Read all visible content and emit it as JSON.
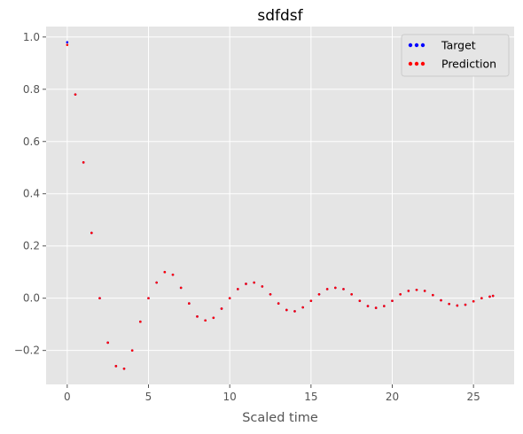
{
  "chart_data": {
    "type": "scatter",
    "title": "sdfdsf",
    "xlabel": "Scaled time",
    "ylabel": "",
    "xlim": [
      -1.3,
      27.5
    ],
    "ylim": [
      -0.33,
      1.04
    ],
    "x_ticks": [
      0,
      5,
      10,
      15,
      20,
      25
    ],
    "x_tick_labels": [
      "0",
      "5",
      "10",
      "15",
      "20",
      "25"
    ],
    "y_ticks": [
      -0.2,
      0.0,
      0.2,
      0.4,
      0.6,
      0.8,
      1.0
    ],
    "y_tick_labels": [
      "−0.2",
      "0.0",
      "0.2",
      "0.4",
      "0.6",
      "0.8",
      "1.0"
    ],
    "grid": true,
    "legend_position": "top-right",
    "series": [
      {
        "name": "Target",
        "color": "#0000ff",
        "x": [
          0.0,
          0.5,
          1.0,
          1.5,
          2.0,
          2.5,
          3.0,
          3.5,
          4.0,
          4.5,
          5.0,
          5.5,
          6.0,
          6.5,
          7.0,
          7.5,
          8.0,
          8.5,
          9.0,
          9.5,
          10.0,
          10.5,
          11.0,
          11.5,
          12.0,
          12.5,
          13.0,
          13.5,
          14.0,
          14.5,
          15.0,
          15.5,
          16.0,
          16.5,
          17.0,
          17.5,
          18.0,
          18.5,
          19.0,
          19.5,
          20.0,
          20.5,
          21.0,
          21.5,
          22.0,
          22.5,
          23.0,
          23.5,
          24.0,
          24.5,
          25.0,
          25.5,
          26.0,
          26.2
        ],
        "y": [
          0.98,
          0.78,
          0.52,
          0.25,
          0.0,
          -0.17,
          -0.26,
          -0.27,
          -0.2,
          -0.09,
          0.0,
          0.06,
          0.1,
          0.09,
          0.04,
          -0.02,
          -0.07,
          -0.085,
          -0.075,
          -0.04,
          0.0,
          0.035,
          0.055,
          0.06,
          0.045,
          0.015,
          -0.02,
          -0.045,
          -0.05,
          -0.035,
          -0.01,
          0.015,
          0.035,
          0.04,
          0.035,
          0.015,
          -0.01,
          -0.03,
          -0.037,
          -0.03,
          -0.01,
          0.015,
          0.028,
          0.032,
          0.028,
          0.012,
          -0.008,
          -0.022,
          -0.028,
          -0.025,
          -0.012,
          0.0,
          0.006,
          0.009
        ]
      },
      {
        "name": "Prediction",
        "color": "#ff0000",
        "x": [
          0.0,
          0.5,
          1.0,
          1.5,
          2.0,
          2.5,
          3.0,
          3.5,
          4.0,
          4.5,
          5.0,
          5.5,
          6.0,
          6.5,
          7.0,
          7.5,
          8.0,
          8.5,
          9.0,
          9.5,
          10.0,
          10.5,
          11.0,
          11.5,
          12.0,
          12.5,
          13.0,
          13.5,
          14.0,
          14.5,
          15.0,
          15.5,
          16.0,
          16.5,
          17.0,
          17.5,
          18.0,
          18.5,
          19.0,
          19.5,
          20.0,
          20.5,
          21.0,
          21.5,
          22.0,
          22.5,
          23.0,
          23.5,
          24.0,
          24.5,
          25.0,
          25.5,
          26.0,
          26.2
        ],
        "y": [
          0.97,
          0.78,
          0.52,
          0.25,
          0.0,
          -0.17,
          -0.26,
          -0.27,
          -0.2,
          -0.09,
          0.0,
          0.06,
          0.1,
          0.09,
          0.04,
          -0.02,
          -0.07,
          -0.085,
          -0.075,
          -0.04,
          0.0,
          0.035,
          0.055,
          0.06,
          0.045,
          0.015,
          -0.02,
          -0.045,
          -0.05,
          -0.035,
          -0.01,
          0.015,
          0.035,
          0.04,
          0.035,
          0.015,
          -0.01,
          -0.03,
          -0.037,
          -0.03,
          -0.01,
          0.015,
          0.028,
          0.032,
          0.028,
          0.012,
          -0.008,
          -0.022,
          -0.028,
          -0.025,
          -0.012,
          0.0,
          0.006,
          0.009
        ]
      }
    ],
    "plot_background": "#e5e5e5",
    "grid_color": "#ffffff"
  }
}
